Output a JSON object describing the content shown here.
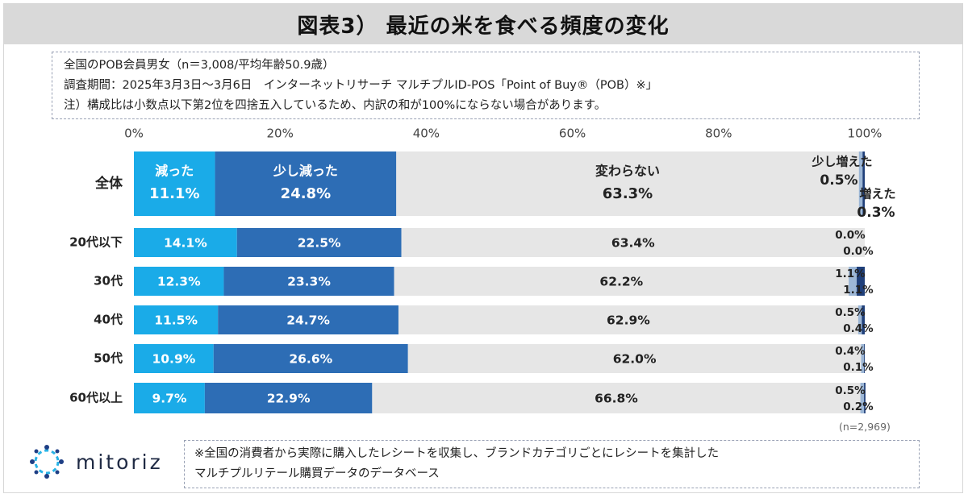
{
  "title": "図表3） 最近の米を食べる頻度の変化",
  "info": {
    "line1": "全国のPOB会員男女（n＝3,008/平均年齢50.9歳）",
    "line2": "調査期間：2025年3月3日～3月6日　インターネットリサーチ マルチプルID-POS「Point of Buy®（POB）※」",
    "line3": "注）構成比は小数点以下第2位を四捨五入しているため、内訳の和が100%にならない場合があります。"
  },
  "sample_note": "(n=2,969)",
  "footnote": {
    "line1": "※全国の消費者から実際に購入したレシートを収集し、ブランドカテゴリごとにレシートを集計した",
    "line2": "マルチプルリテール購買データのデータベース"
  },
  "logo_text": "mitoriz",
  "colors": {
    "decreased": "#1aabe8",
    "slightly_decreased": "#2d6db5",
    "unchanged": "#e6e6e6",
    "slightly_increased": "#9db7d6",
    "increased": "#1f3f7a"
  },
  "chart_data": {
    "type": "bar",
    "orientation": "horizontal-stacked",
    "xlim": [
      0,
      100
    ],
    "ticks": [
      "0%",
      "20%",
      "40%",
      "60%",
      "80%",
      "100%"
    ],
    "categories": [
      "全体",
      "20代以下",
      "30代",
      "40代",
      "50代",
      "60代以上"
    ],
    "series": [
      {
        "name": "減った",
        "values": [
          11.1,
          14.1,
          12.3,
          11.5,
          10.9,
          9.7
        ]
      },
      {
        "name": "少し減った",
        "values": [
          24.8,
          22.5,
          23.3,
          24.7,
          26.6,
          22.9
        ]
      },
      {
        "name": "変わらない",
        "values": [
          63.3,
          63.4,
          62.2,
          62.9,
          62.0,
          66.8
        ]
      },
      {
        "name": "少し増えた",
        "values": [
          0.5,
          0.0,
          1.1,
          0.5,
          0.4,
          0.5
        ]
      },
      {
        "name": "増えた",
        "values": [
          0.3,
          0.0,
          1.1,
          0.4,
          0.1,
          0.2
        ]
      }
    ],
    "value_labels": [
      [
        "11.1%",
        "24.8%",
        "63.3%",
        "0.5%",
        "0.3%"
      ],
      [
        "14.1%",
        "22.5%",
        "63.4%",
        "0.0%",
        "0.0%"
      ],
      [
        "12.3%",
        "23.3%",
        "62.2%",
        "1.1%",
        "1.1%"
      ],
      [
        "11.5%",
        "24.7%",
        "62.9%",
        "0.5%",
        "0.4%"
      ],
      [
        "10.9%",
        "26.6%",
        "62.0%",
        "0.4%",
        "0.1%"
      ],
      [
        "9.7%",
        "22.9%",
        "66.8%",
        "0.5%",
        "0.2%"
      ]
    ]
  }
}
